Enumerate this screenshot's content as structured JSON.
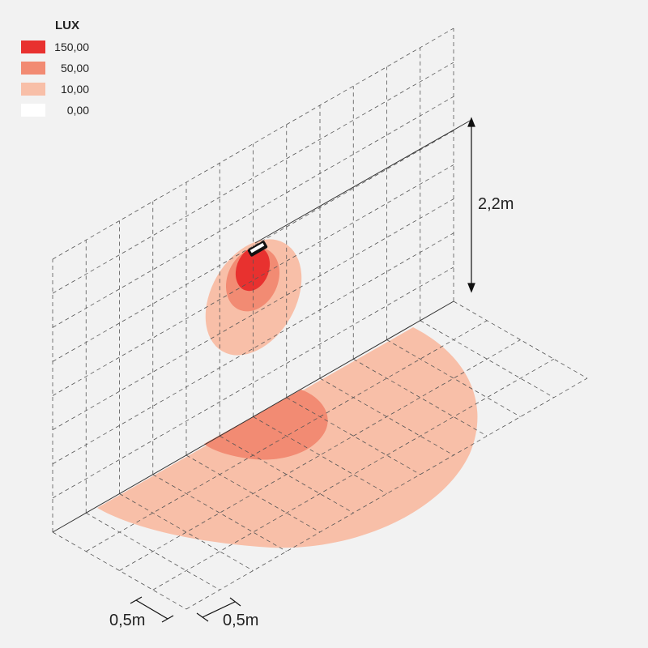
{
  "legend": {
    "title": "LUX",
    "items": [
      {
        "label": "150,00",
        "color": "#e8312f"
      },
      {
        "label": "50,00",
        "color": "#f28b73"
      },
      {
        "label": "10,00",
        "color": "#f8bfa8"
      },
      {
        "label": "0,00",
        "color": "#ffffff"
      }
    ]
  },
  "dimensions": {
    "height": "2,2m",
    "grid_x": "0,5m",
    "grid_y": "0,5m"
  }
}
